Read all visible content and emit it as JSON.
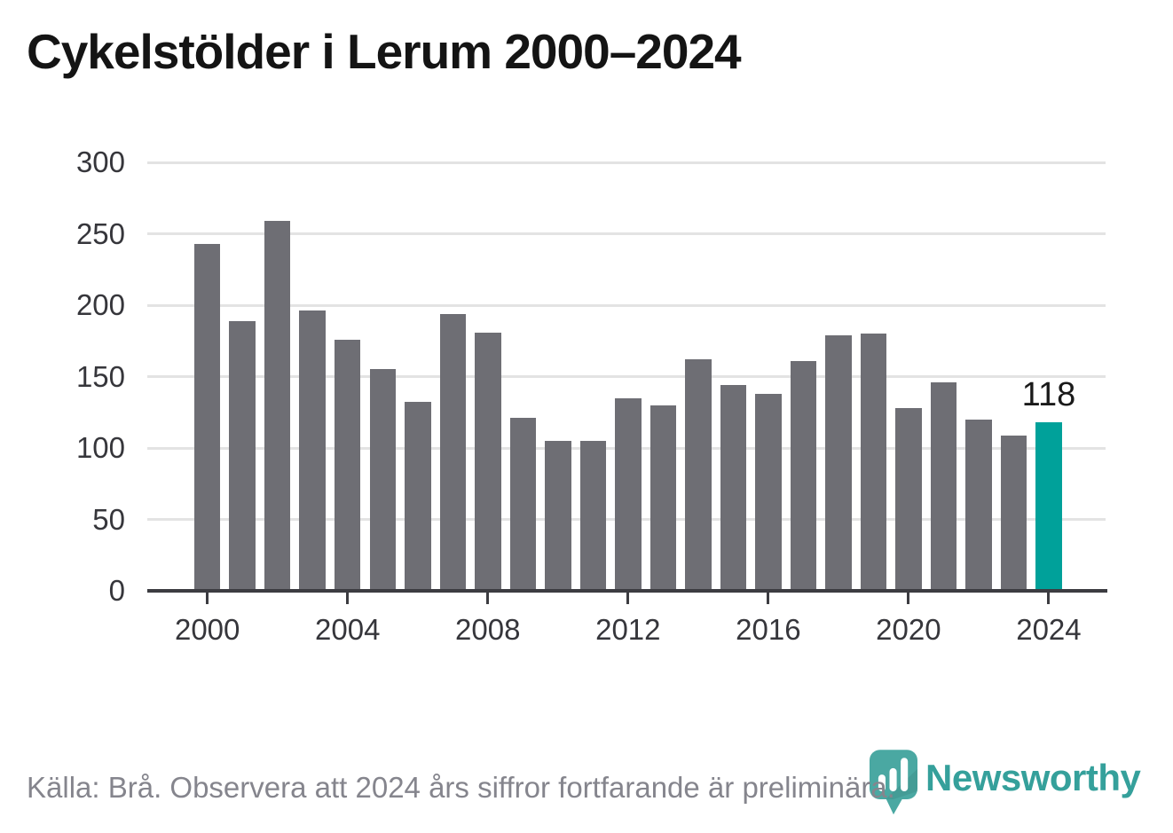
{
  "title": "Cykelstölder i Lerum 2000–2024",
  "footer": {
    "source_note": "Källa: Brå. Observera att 2024 års siffror fortfarande är preliminära."
  },
  "logo": {
    "wordmark": "Newsworthy",
    "icon": "newsworthy-pin-bar-chart-icon"
  },
  "colors": {
    "bar": "#6e6e74",
    "highlight": "#00a19a",
    "gridline": "#e3e3e3",
    "axis": "#3c3c41",
    "tick_label": "#36363b",
    "title": "#141414",
    "value_label": "#1a1a1a",
    "footer_text": "#85858d",
    "logo_teal": "#4aa8a2",
    "wordmark_teal": "#35a09b"
  },
  "chart_data": {
    "type": "bar",
    "title": "Cykelstölder i Lerum 2000–2024",
    "categories": [
      2000,
      2001,
      2002,
      2003,
      2004,
      2005,
      2006,
      2007,
      2008,
      2009,
      2010,
      2011,
      2012,
      2013,
      2014,
      2015,
      2016,
      2017,
      2018,
      2019,
      2020,
      2021,
      2022,
      2023,
      2024
    ],
    "values": [
      243,
      189,
      259,
      196,
      176,
      155,
      132,
      194,
      181,
      121,
      105,
      105,
      135,
      130,
      162,
      144,
      138,
      161,
      179,
      180,
      128,
      146,
      120,
      109,
      118
    ],
    "highlight_index": 24,
    "highlight_value_label": "118",
    "xlabel": "",
    "ylabel": "",
    "ylim": [
      0,
      300
    ],
    "yticks": [
      0,
      50,
      100,
      150,
      200,
      250,
      300
    ],
    "xticks": [
      2000,
      2004,
      2008,
      2012,
      2016,
      2020,
      2024
    ],
    "grid": "horizontal",
    "legend": "none"
  }
}
